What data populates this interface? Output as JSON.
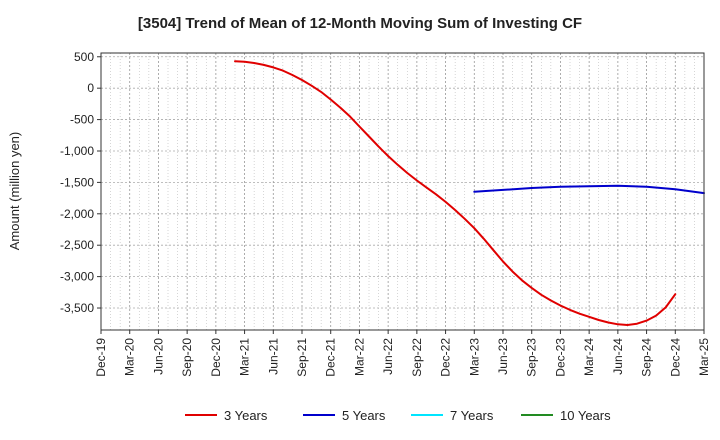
{
  "chart_data": {
    "type": "line",
    "title": "[3504]  Trend of Mean of 12-Month Moving Sum of Investing CF",
    "xlabel": "",
    "ylabel": "Amount (million yen)",
    "ylim": [
      -3850,
      560
    ],
    "yticks": [
      500,
      0,
      -500,
      -1000,
      -1500,
      -2000,
      -2500,
      -3000,
      -3500
    ],
    "ytick_labels": [
      "500",
      "0",
      "-500",
      "-1,000",
      "-1,500",
      "-2,000",
      "-2,500",
      "-3,000",
      "-3,500"
    ],
    "x_categories": [
      "Dec-19",
      "Mar-20",
      "Jun-20",
      "Sep-20",
      "Dec-20",
      "Mar-21",
      "Jun-21",
      "Sep-21",
      "Dec-21",
      "Mar-22",
      "Jun-22",
      "Sep-22",
      "Dec-22",
      "Mar-23",
      "Jun-23",
      "Sep-23",
      "Dec-23",
      "Mar-24",
      "Jun-24",
      "Sep-24",
      "Dec-24",
      "Mar-25"
    ],
    "grid": true,
    "legend_position": "bottom",
    "series": [
      {
        "name": "3 Years",
        "color": "#e00000",
        "points": [
          [
            "Feb-21",
            430
          ],
          [
            "Mar-21",
            420
          ],
          [
            "Apr-21",
            400
          ],
          [
            "May-21",
            370
          ],
          [
            "Jun-21",
            330
          ],
          [
            "Jul-21",
            280
          ],
          [
            "Aug-21",
            210
          ],
          [
            "Sep-21",
            130
          ],
          [
            "Oct-21",
            40
          ],
          [
            "Nov-21",
            -60
          ],
          [
            "Dec-21",
            -180
          ],
          [
            "Jan-22",
            -310
          ],
          [
            "Feb-22",
            -450
          ],
          [
            "Mar-22",
            -610
          ],
          [
            "Apr-22",
            -770
          ],
          [
            "May-22",
            -930
          ],
          [
            "Jun-22",
            -1080
          ],
          [
            "Jul-22",
            -1220
          ],
          [
            "Aug-22",
            -1350
          ],
          [
            "Sep-22",
            -1470
          ],
          [
            "Oct-22",
            -1580
          ],
          [
            "Nov-22",
            -1690
          ],
          [
            "Dec-22",
            -1810
          ],
          [
            "Jan-23",
            -1940
          ],
          [
            "Feb-23",
            -2080
          ],
          [
            "Mar-23",
            -2230
          ],
          [
            "Apr-23",
            -2400
          ],
          [
            "May-23",
            -2580
          ],
          [
            "Jun-23",
            -2760
          ],
          [
            "Jul-23",
            -2920
          ],
          [
            "Aug-23",
            -3060
          ],
          [
            "Sep-23",
            -3180
          ],
          [
            "Oct-23",
            -3290
          ],
          [
            "Nov-23",
            -3380
          ],
          [
            "Dec-23",
            -3460
          ],
          [
            "Jan-24",
            -3530
          ],
          [
            "Feb-24",
            -3590
          ],
          [
            "Mar-24",
            -3640
          ],
          [
            "Apr-24",
            -3690
          ],
          [
            "May-24",
            -3730
          ],
          [
            "Jun-24",
            -3760
          ],
          [
            "Jul-24",
            -3770
          ],
          [
            "Aug-24",
            -3750
          ],
          [
            "Sep-24",
            -3700
          ],
          [
            "Oct-24",
            -3620
          ],
          [
            "Nov-24",
            -3490
          ],
          [
            "Dec-24",
            -3280
          ]
        ]
      },
      {
        "name": "5 Years",
        "color": "#0000cc",
        "points": [
          [
            "Mar-23",
            -1650
          ],
          [
            "Jun-23",
            -1620
          ],
          [
            "Sep-23",
            -1590
          ],
          [
            "Dec-23",
            -1570
          ],
          [
            "Mar-24",
            -1560
          ],
          [
            "Jun-24",
            -1555
          ],
          [
            "Sep-24",
            -1570
          ],
          [
            "Dec-24",
            -1610
          ],
          [
            "Mar-25",
            -1670
          ]
        ]
      },
      {
        "name": "7 Years",
        "color": "#00e5ff",
        "points": []
      },
      {
        "name": "10 Years",
        "color": "#228b22",
        "points": []
      }
    ]
  }
}
